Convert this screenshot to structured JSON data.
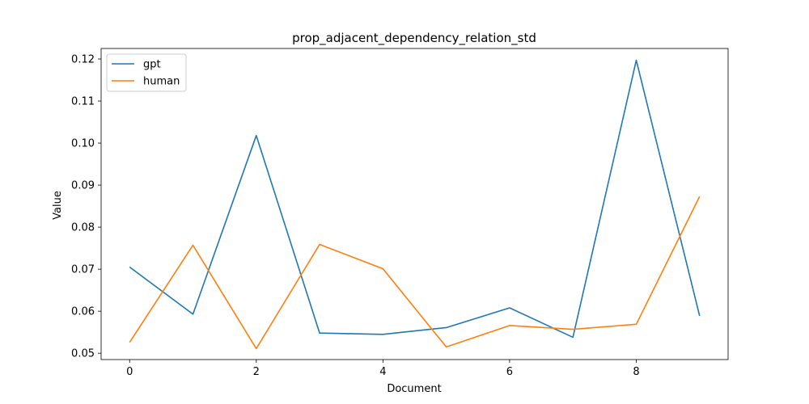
{
  "chart_data": {
    "type": "line",
    "title": "prop_adjacent_dependency_relation_std",
    "xlabel": "Document",
    "ylabel": "Value",
    "x": [
      0,
      1,
      2,
      3,
      4,
      5,
      6,
      7,
      8,
      9
    ],
    "xlim": [
      -0.45,
      9.45
    ],
    "ylim": [
      0.0485,
      0.1225
    ],
    "xticks": [
      0,
      2,
      4,
      6,
      8
    ],
    "yticks": [
      0.05,
      0.06,
      0.07,
      0.08,
      0.09,
      0.1,
      0.11,
      0.12
    ],
    "ytick_labels": [
      "0.05",
      "0.06",
      "0.07",
      "0.08",
      "0.09",
      "0.10",
      "0.11",
      "0.12"
    ],
    "grid": false,
    "legend_position": "top-left",
    "series": [
      {
        "name": "gpt",
        "color": "#1f77b4",
        "values": [
          0.0705,
          0.0593,
          0.1018,
          0.0548,
          0.0545,
          0.0561,
          0.0608,
          0.0538,
          0.1197,
          0.0589
        ]
      },
      {
        "name": "human",
        "color": "#ff7f0e",
        "values": [
          0.0526,
          0.0757,
          0.0511,
          0.0759,
          0.0701,
          0.0515,
          0.0566,
          0.0557,
          0.0569,
          0.0873
        ]
      }
    ]
  }
}
